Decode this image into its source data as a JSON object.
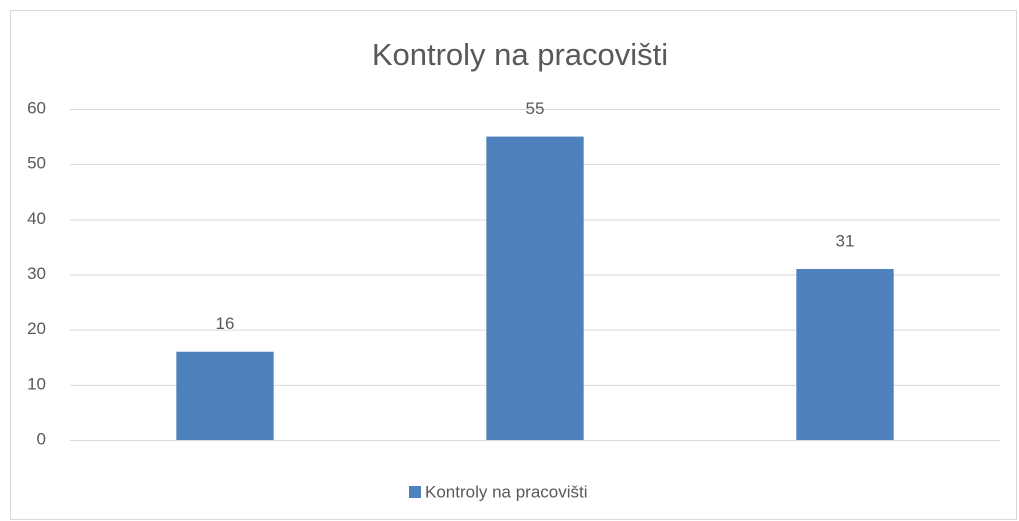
{
  "chart_data": {
    "type": "bar",
    "title": "Kontroly na pracovišti",
    "categories": [
      null,
      null,
      null
    ],
    "series": [
      {
        "name": "Kontroly na pracovišti",
        "color": "#4f81bd",
        "values": [
          16,
          55,
          31
        ]
      }
    ],
    "ylim": [
      0,
      60
    ],
    "yticks": [
      0,
      10,
      20,
      30,
      40,
      50,
      60
    ],
    "grid": true,
    "legend": "bottom"
  }
}
